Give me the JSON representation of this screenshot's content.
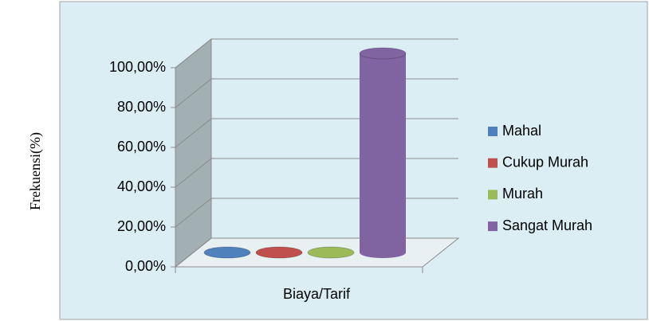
{
  "chart_data": {
    "type": "bar",
    "y_label": "Frekuensi(%)",
    "categories": [
      "Biaya/Tarif"
    ],
    "series": [
      {
        "name": "Mahal",
        "color": "#4f81bd",
        "values": [
          0
        ]
      },
      {
        "name": "Cukup Murah",
        "color": "#c0504d",
        "values": [
          0
        ]
      },
      {
        "name": "Murah",
        "color": "#9bbb59",
        "values": [
          0
        ]
      },
      {
        "name": "Sangat Murah",
        "color": "#8064a2",
        "values": [
          100
        ]
      }
    ],
    "ylim": [
      0,
      100
    ],
    "yticks": [
      {
        "value": 0,
        "label": "0,00%"
      },
      {
        "value": 20,
        "label": "20,00%"
      },
      {
        "value": 40,
        "label": "40,00%"
      },
      {
        "value": 60,
        "label": "60,00%"
      },
      {
        "value": 80,
        "label": "80,00%"
      },
      {
        "value": 100,
        "label": "100,00%"
      }
    ],
    "grid": true,
    "legend": "right"
  }
}
